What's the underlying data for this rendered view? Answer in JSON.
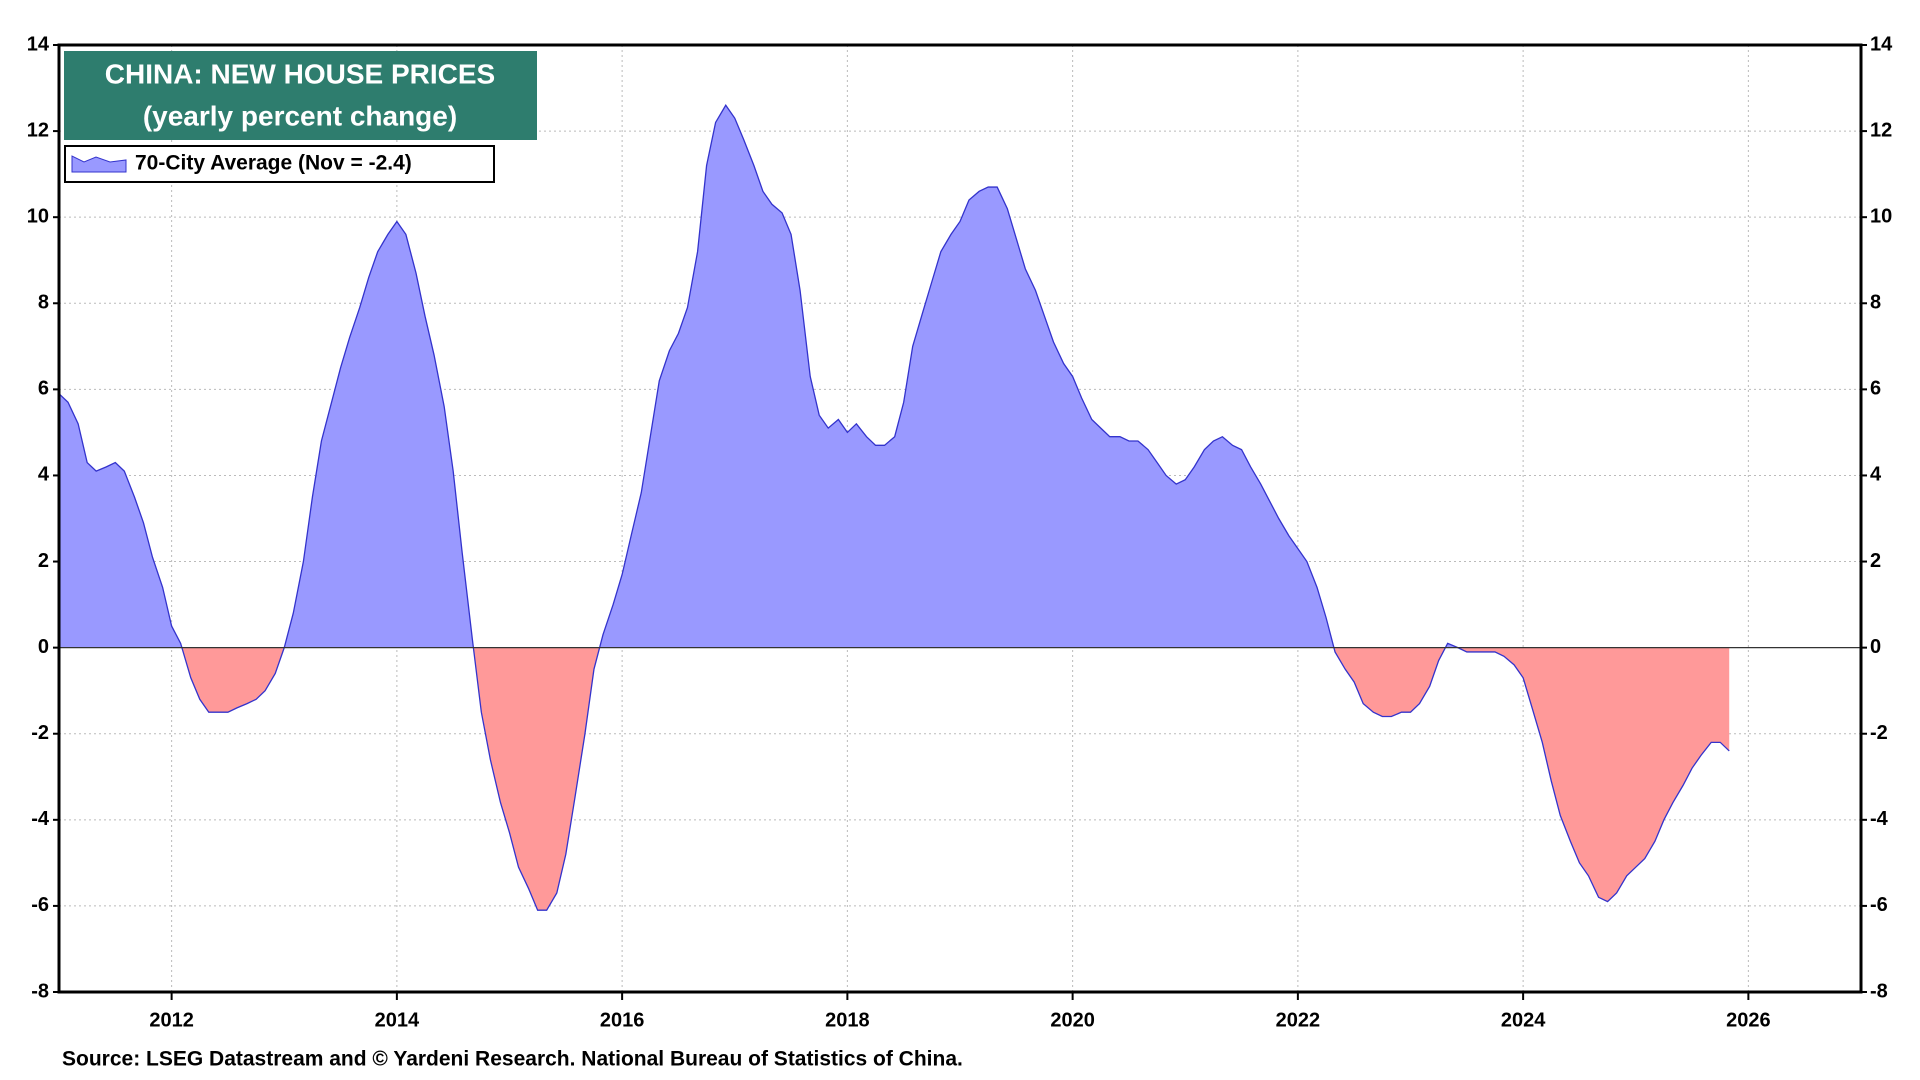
{
  "chart_data": {
    "type": "area",
    "title": "CHINA: NEW HOUSE PRICES",
    "subtitle": "(yearly percent change)",
    "source": "Source: LSEG Datastream and © Yardeni Research. National Bureau of Statistics of China.",
    "xlim": [
      2011,
      2027
    ],
    "xticks": [
      2012,
      2014,
      2016,
      2018,
      2020,
      2022,
      2024,
      2026
    ],
    "ylim": [
      -8,
      14
    ],
    "yticks": [
      -8,
      -6,
      -4,
      -2,
      0,
      2,
      4,
      6,
      8,
      10,
      12,
      14
    ],
    "y2lim": [
      -8,
      14
    ],
    "y2ticks": [
      -8,
      -6,
      -4,
      -2,
      0,
      2,
      4,
      6,
      8,
      10,
      12,
      14
    ],
    "grid": true,
    "legend": "upper left",
    "x": [
      2011,
      2011.08,
      2011.17,
      2011.25,
      2011.33,
      2011.42,
      2011.5,
      2011.58,
      2011.67,
      2011.75,
      2011.83,
      2011.92,
      2012,
      2012.08,
      2012.17,
      2012.25,
      2012.33,
      2012.42,
      2012.5,
      2012.58,
      2012.67,
      2012.75,
      2012.83,
      2012.92,
      2013,
      2013.08,
      2013.17,
      2013.25,
      2013.33,
      2013.42,
      2013.5,
      2013.58,
      2013.67,
      2013.75,
      2013.83,
      2013.92,
      2014,
      2014.08,
      2014.17,
      2014.25,
      2014.33,
      2014.42,
      2014.5,
      2014.58,
      2014.67,
      2014.75,
      2014.83,
      2014.92,
      2015,
      2015.08,
      2015.17,
      2015.25,
      2015.33,
      2015.42,
      2015.5,
      2015.58,
      2015.67,
      2015.75,
      2015.83,
      2015.92,
      2016,
      2016.08,
      2016.17,
      2016.25,
      2016.33,
      2016.42,
      2016.5,
      2016.58,
      2016.67,
      2016.75,
      2016.83,
      2016.92,
      2017,
      2017.08,
      2017.17,
      2017.25,
      2017.33,
      2017.42,
      2017.5,
      2017.58,
      2017.67,
      2017.75,
      2017.83,
      2017.92,
      2018,
      2018.08,
      2018.17,
      2018.25,
      2018.33,
      2018.42,
      2018.5,
      2018.58,
      2018.67,
      2018.75,
      2018.83,
      2018.92,
      2019,
      2019.08,
      2019.17,
      2019.25,
      2019.33,
      2019.42,
      2019.5,
      2019.58,
      2019.67,
      2019.75,
      2019.83,
      2019.92,
      2020,
      2020.08,
      2020.17,
      2020.25,
      2020.33,
      2020.42,
      2020.5,
      2020.58,
      2020.67,
      2020.75,
      2020.83,
      2020.92,
      2021,
      2021.08,
      2021.17,
      2021.25,
      2021.33,
      2021.42,
      2021.5,
      2021.58,
      2021.67,
      2021.75,
      2021.83,
      2021.92,
      2022,
      2022.08,
      2022.17,
      2022.25,
      2022.33,
      2022.42,
      2022.5,
      2022.58,
      2022.67,
      2022.75,
      2022.83,
      2022.92,
      2023,
      2023.08,
      2023.17,
      2023.25,
      2023.33,
      2023.42,
      2023.5,
      2023.58,
      2023.67,
      2023.75,
      2023.83,
      2023.92,
      2024,
      2024.08,
      2024.17,
      2024.25,
      2024.33,
      2024.42,
      2024.5,
      2024.58,
      2024.67,
      2024.75,
      2024.83,
      2024.92,
      2025,
      2025.08,
      2025.17,
      2025.25,
      2025.33,
      2025.42,
      2025.5,
      2025.58,
      2025.67,
      2025.75,
      2025.83
    ],
    "series": [
      {
        "name": "70-City Average (Nov = -2.4)",
        "color": "#9999ff",
        "line_color": "#3333cc",
        "negative_color": "#ff9999",
        "values": [
          5.9,
          5.7,
          5.2,
          4.3,
          4.1,
          4.2,
          4.3,
          4.1,
          3.5,
          2.9,
          2.1,
          1.4,
          0.5,
          0.1,
          -0.7,
          -1.2,
          -1.5,
          -1.5,
          -1.5,
          -1.4,
          -1.3,
          -1.2,
          -1.0,
          -0.6,
          0.0,
          0.8,
          2.0,
          3.5,
          4.8,
          5.7,
          6.5,
          7.2,
          7.9,
          8.6,
          9.2,
          9.6,
          9.9,
          9.6,
          8.7,
          7.7,
          6.8,
          5.6,
          4.1,
          2.2,
          0.2,
          -1.5,
          -2.6,
          -3.6,
          -4.3,
          -5.1,
          -5.6,
          -6.1,
          -6.1,
          -5.7,
          -4.8,
          -3.5,
          -2.0,
          -0.5,
          0.3,
          1.0,
          1.7,
          2.6,
          3.6,
          4.9,
          6.2,
          6.9,
          7.3,
          7.9,
          9.2,
          11.2,
          12.2,
          12.6,
          12.3,
          11.8,
          11.2,
          10.6,
          10.3,
          10.1,
          9.6,
          8.3,
          6.3,
          5.4,
          5.1,
          5.3,
          5.0,
          5.2,
          4.9,
          4.7,
          4.7,
          4.9,
          5.7,
          7.0,
          7.8,
          8.5,
          9.2,
          9.6,
          9.9,
          10.4,
          10.6,
          10.7,
          10.7,
          10.2,
          9.5,
          8.8,
          8.3,
          7.7,
          7.1,
          6.6,
          6.3,
          5.8,
          5.3,
          5.1,
          4.9,
          4.9,
          4.8,
          4.8,
          4.6,
          4.3,
          4.0,
          3.8,
          3.9,
          4.2,
          4.6,
          4.8,
          4.9,
          4.7,
          4.6,
          4.2,
          3.8,
          3.4,
          3.0,
          2.6,
          2.3,
          2.0,
          1.4,
          0.7,
          -0.1,
          -0.5,
          -0.8,
          -1.3,
          -1.5,
          -1.6,
          -1.6,
          -1.5,
          -1.5,
          -1.3,
          -0.9,
          -0.3,
          0.1,
          0.0,
          -0.1,
          -0.1,
          -0.1,
          -0.1,
          -0.2,
          -0.4,
          -0.7,
          -1.4,
          -2.2,
          -3.1,
          -3.9,
          -4.5,
          -5.0,
          -5.3,
          -5.8,
          -5.9,
          -5.7,
          -5.3,
          -5.1,
          -4.9,
          -4.5,
          -4.0,
          -3.6,
          -3.2,
          -2.8,
          -2.5,
          -2.2,
          -2.2,
          -2.4
        ]
      }
    ]
  }
}
